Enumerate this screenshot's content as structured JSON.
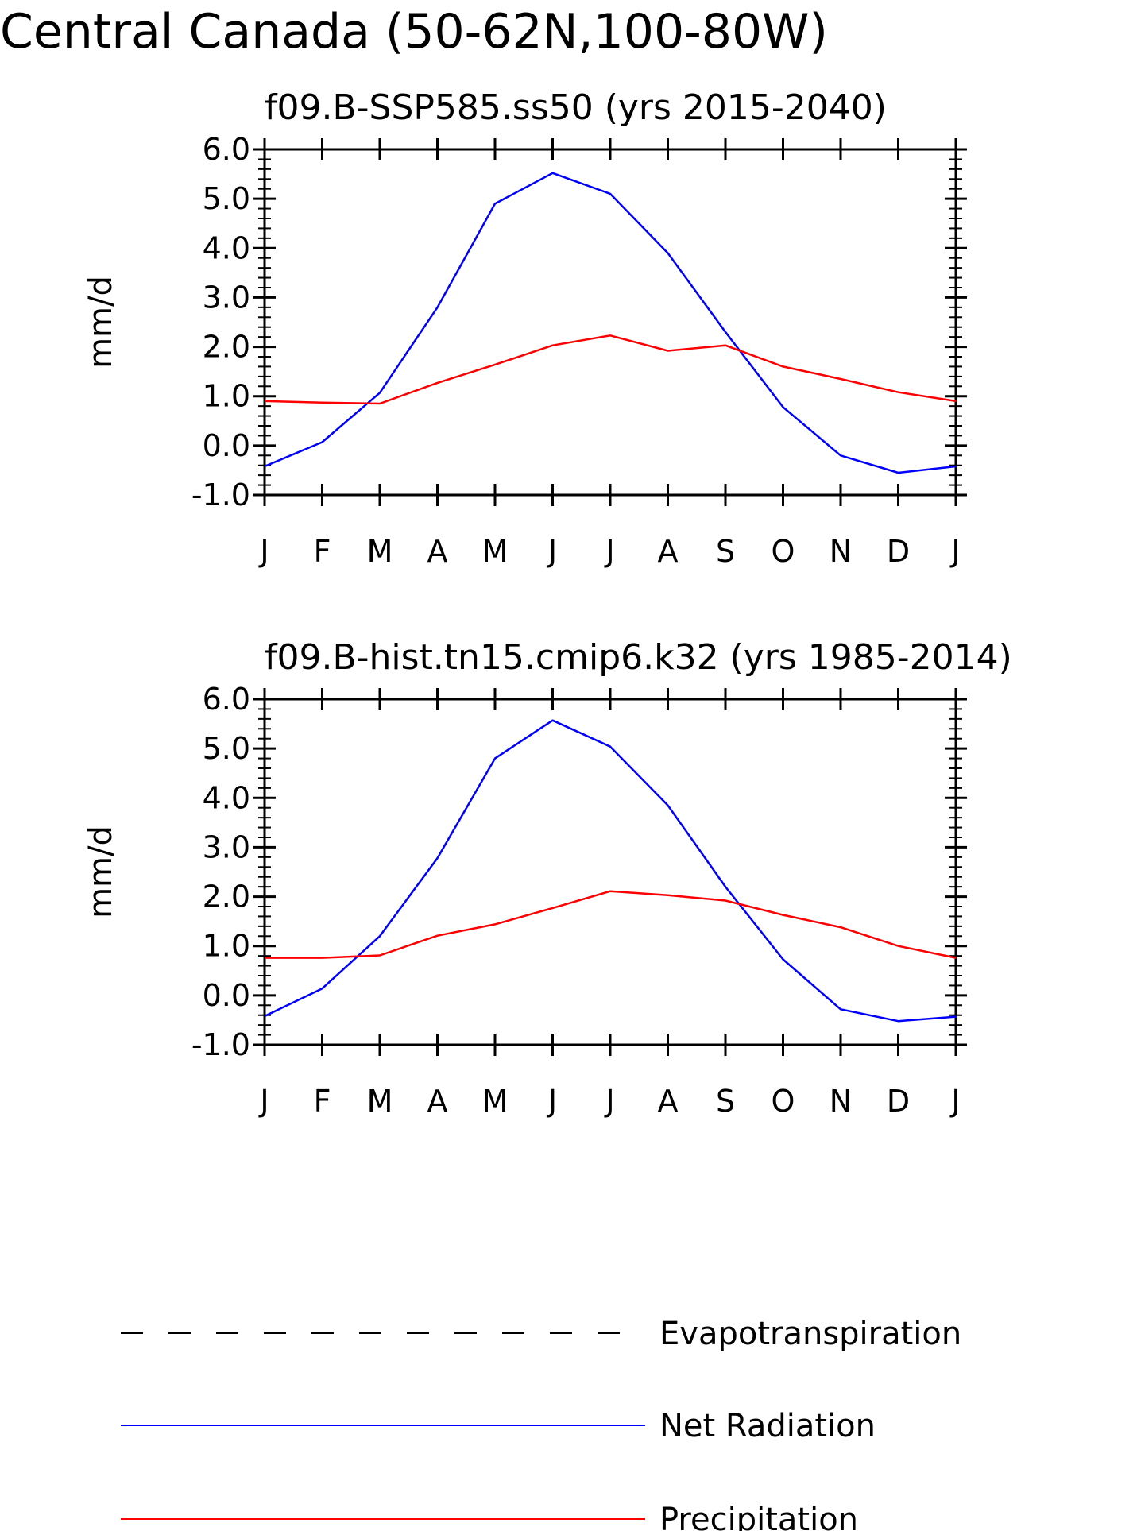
{
  "main_title": "Central Canada (50-62N,100-80W)",
  "chart_data": [
    {
      "type": "line",
      "title": "f09.B-SSP585.ss50 (yrs 2015-2040)",
      "xlabel": "",
      "ylabel": "mm/d",
      "categories": [
        "J",
        "F",
        "M",
        "A",
        "M",
        "J",
        "J",
        "A",
        "S",
        "O",
        "N",
        "D",
        "J"
      ],
      "ylim": [
        -1.0,
        6.0
      ],
      "yticks": [
        "-1.0",
        "0.0",
        "1.0",
        "2.0",
        "3.0",
        "4.0",
        "5.0",
        "6.0"
      ],
      "grid": false,
      "series": [
        {
          "name": "Net Radiation",
          "color": "#0000ff",
          "values": [
            -0.42,
            0.07,
            1.07,
            2.8,
            4.9,
            5.52,
            5.1,
            3.9,
            2.3,
            0.78,
            -0.2,
            -0.55,
            -0.42
          ]
        },
        {
          "name": "Precipitation",
          "color": "#ff0000",
          "values": [
            0.9,
            0.87,
            0.85,
            1.27,
            1.64,
            2.03,
            2.23,
            1.92,
            2.03,
            1.6,
            1.35,
            1.08,
            0.9
          ]
        }
      ]
    },
    {
      "type": "line",
      "title": "f09.B-hist.tn15.cmip6.k32 (yrs 1985-2014)",
      "xlabel": "",
      "ylabel": "mm/d",
      "categories": [
        "J",
        "F",
        "M",
        "A",
        "M",
        "J",
        "J",
        "A",
        "S",
        "O",
        "N",
        "D",
        "J"
      ],
      "ylim": [
        -1.0,
        6.0
      ],
      "yticks": [
        "-1.0",
        "0.0",
        "1.0",
        "2.0",
        "3.0",
        "4.0",
        "5.0",
        "6.0"
      ],
      "grid": false,
      "series": [
        {
          "name": "Net Radiation",
          "color": "#0000ff",
          "values": [
            -0.42,
            0.14,
            1.2,
            2.78,
            4.8,
            5.57,
            5.04,
            3.85,
            2.2,
            0.73,
            -0.28,
            -0.52,
            -0.43
          ]
        },
        {
          "name": "Precipitation",
          "color": "#ff0000",
          "values": [
            0.76,
            0.76,
            0.81,
            1.21,
            1.44,
            1.77,
            2.11,
            2.03,
            1.92,
            1.63,
            1.38,
            1.0,
            0.76
          ]
        }
      ]
    }
  ],
  "legend": {
    "placement": "bottom",
    "items": [
      {
        "label": "Evapotranspiration",
        "color": "#000000",
        "style": "dashed"
      },
      {
        "label": "Net Radiation",
        "color": "#0000ff",
        "style": "solid"
      },
      {
        "label": "Precipitation",
        "color": "#ff0000",
        "style": "solid"
      }
    ]
  }
}
